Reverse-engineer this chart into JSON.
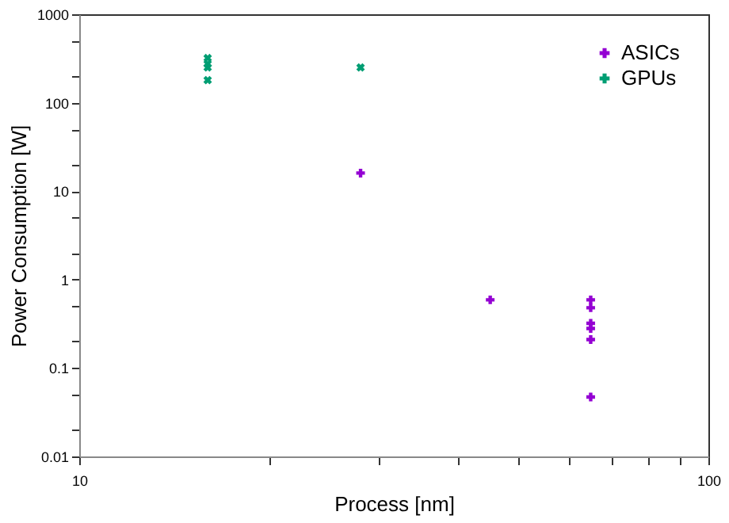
{
  "chart_data": {
    "type": "scatter",
    "xlabel": "Process [nm]",
    "ylabel": "Power Consumption [W]",
    "log": "xy",
    "xlim": [
      10,
      100
    ],
    "xticks": [
      10,
      {
        "value": 20,
        "label": null
      },
      {
        "value": 30,
        "label": null
      },
      {
        "value": 40,
        "label": null
      },
      {
        "value": 50,
        "label": null
      },
      {
        "value": 60,
        "label": null
      },
      {
        "value": 70,
        "label": null
      },
      {
        "value": 80,
        "label": null
      },
      {
        "value": 90,
        "label": null
      },
      100
    ],
    "ylim": [
      0.01,
      1000
    ],
    "yticks": [
      0.01,
      {
        "value": 0.02,
        "label": null
      },
      {
        "value": 0.05,
        "label": null
      },
      0.1,
      {
        "value": 0.2,
        "label": null
      },
      {
        "value": 0.5,
        "label": null
      },
      1,
      {
        "value": 2,
        "label": null
      },
      {
        "value": 5,
        "label": null
      },
      10,
      {
        "value": 20,
        "label": null
      },
      {
        "value": 50,
        "label": null
      },
      100,
      {
        "value": 200,
        "label": null
      },
      {
        "value": 500,
        "label": null
      },
      1000
    ],
    "grid": false,
    "legend": "top right",
    "series": [
      {
        "name": "ASICs",
        "color": "#9400d3",
        "marker": "cross",
        "x": [
          28,
          45,
          65,
          65,
          65,
          65,
          65,
          65
        ],
        "values": [
          16,
          0.59,
          0.59,
          0.48,
          0.32,
          0.28,
          0.21,
          0.047
        ]
      },
      {
        "name": "GPUs",
        "color": "#009e73",
        "marker": "x",
        "x": [
          16,
          16,
          16,
          16,
          28
        ],
        "values": [
          320,
          275,
          250,
          180,
          250
        ]
      }
    ]
  }
}
